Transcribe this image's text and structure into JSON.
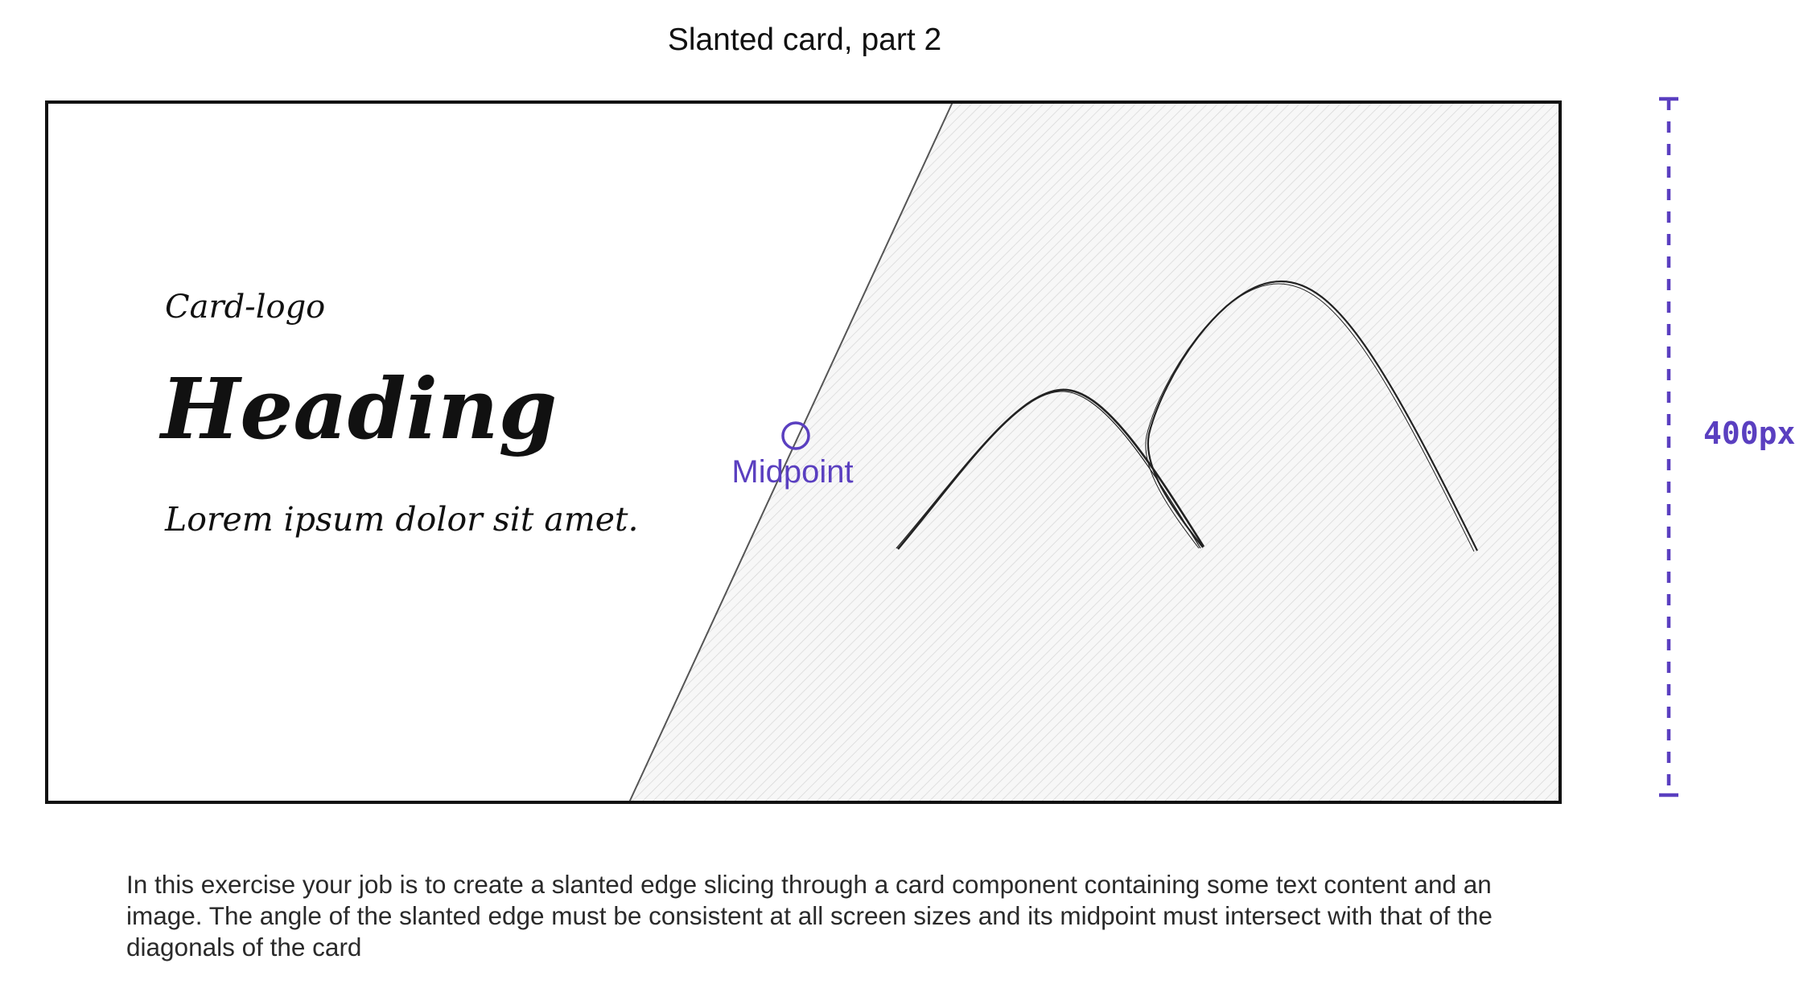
{
  "title": "Slanted card, part 2",
  "card": {
    "logo": "Card-logo",
    "heading": "Heading",
    "body": "Lorem ipsum dolor sit amet."
  },
  "midpoint_label": "Midpoint",
  "height_dimension": "400px",
  "description": "In this exercise your job is to create a slanted edge slicing through a card component containing some text content and an image. The angle of the slanted edge must be consistent at all screen sizes and its midpoint must intersect with that of the diagonals of the card",
  "colors": {
    "accent": "#5a3fc0",
    "border": "#111111",
    "image_fill": "#f3f3f3"
  },
  "icons": [
    "mountains-icon",
    "midpoint-circle-icon"
  ]
}
